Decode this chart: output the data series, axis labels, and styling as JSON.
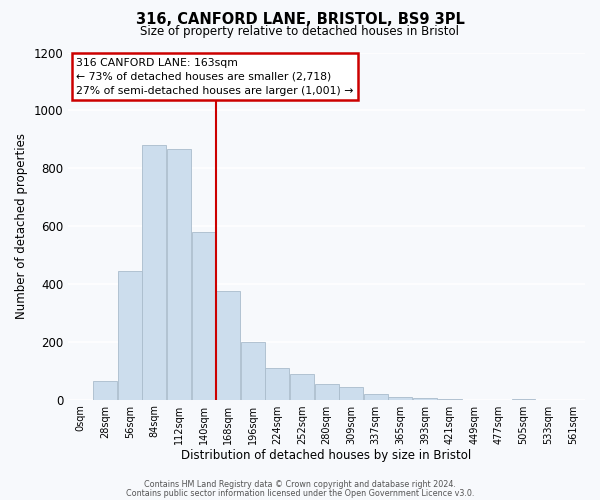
{
  "title": "316, CANFORD LANE, BRISTOL, BS9 3PL",
  "subtitle": "Size of property relative to detached houses in Bristol",
  "xlabel": "Distribution of detached houses by size in Bristol",
  "ylabel": "Number of detached properties",
  "bar_color": "#ccdded",
  "bar_edge_color": "#aabccc",
  "background_color": "#f7f9fc",
  "plot_bg_color": "#f7f9fc",
  "grid_color": "#ffffff",
  "categories": [
    "0sqm",
    "28sqm",
    "56sqm",
    "84sqm",
    "112sqm",
    "140sqm",
    "168sqm",
    "196sqm",
    "224sqm",
    "252sqm",
    "280sqm",
    "309sqm",
    "337sqm",
    "365sqm",
    "393sqm",
    "421sqm",
    "449sqm",
    "477sqm",
    "505sqm",
    "533sqm",
    "561sqm"
  ],
  "values": [
    0,
    65,
    445,
    880,
    865,
    580,
    375,
    200,
    110,
    90,
    55,
    42,
    18,
    10,
    5,
    1,
    0,
    0,
    3,
    0,
    0
  ],
  "ylim": [
    0,
    1200
  ],
  "yticks": [
    0,
    200,
    400,
    600,
    800,
    1000,
    1200
  ],
  "vline_x": 6.0,
  "vline_color": "#cc0000",
  "annotation_title": "316 CANFORD LANE: 163sqm",
  "annotation_line1": "← 73% of detached houses are smaller (2,718)",
  "annotation_line2": "27% of semi-detached houses are larger (1,001) →",
  "annotation_box_color": "#cc0000",
  "footer_line1": "Contains HM Land Registry data © Crown copyright and database right 2024.",
  "footer_line2": "Contains public sector information licensed under the Open Government Licence v3.0.",
  "figsize": [
    6.0,
    5.0
  ],
  "dpi": 100
}
